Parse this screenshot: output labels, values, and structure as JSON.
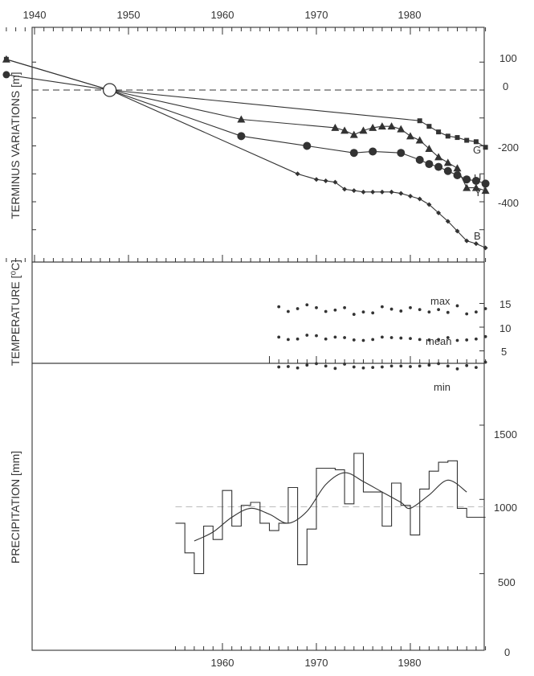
{
  "chart_data": [
    {
      "type": "line",
      "ylabel": "TERMINUS VARIATIONS [m]",
      "x_ticks": [
        "1940",
        "1950",
        "1960",
        "1970",
        "1980"
      ],
      "y_ticks": [
        "100",
        "0",
        "-200",
        "-400"
      ],
      "xlim": [
        1937,
        1989
      ],
      "ylim": [
        -600,
        200
      ],
      "reference_line_y": 0,
      "reference_point": {
        "x": 1948,
        "y": 0
      },
      "series": [
        {
          "name": "G",
          "marker": "square",
          "x": [
            1937,
            1948,
            1981,
            1982,
            1983,
            1984,
            1985,
            1986,
            1987,
            1988
          ],
          "y": [
            110,
            0,
            -110,
            -130,
            -150,
            -165,
            -170,
            -180,
            -185,
            -205
          ]
        },
        {
          "name": "U",
          "marker": "circle",
          "x": [
            1937,
            1948,
            1962,
            1969,
            1974,
            1976,
            1979,
            1981,
            1982,
            1983,
            1984,
            1985,
            1986,
            1987,
            1988
          ],
          "y": [
            55,
            0,
            -165,
            -200,
            -225,
            -220,
            -225,
            -250,
            -265,
            -275,
            -290,
            -305,
            -320,
            -325,
            -335
          ]
        },
        {
          "name": "Y",
          "marker": "triangle",
          "x": [
            1937,
            1948,
            1962,
            1972,
            1973,
            1974,
            1975,
            1976,
            1977,
            1978,
            1979,
            1980,
            1981,
            1982,
            1983,
            1984,
            1985,
            1986,
            1987,
            1988
          ],
          "y": [
            110,
            0,
            -105,
            -135,
            -145,
            -160,
            -145,
            -135,
            -130,
            -130,
            -140,
            -165,
            -180,
            -210,
            -240,
            -260,
            -280,
            -350,
            -350,
            -360
          ]
        },
        {
          "name": "B",
          "marker": "diamond",
          "x": [
            1948,
            1968,
            1970,
            1971,
            1972,
            1973,
            1974,
            1975,
            1976,
            1977,
            1978,
            1979,
            1980,
            1981,
            1982,
            1983,
            1984,
            1985,
            1986,
            1987,
            1988
          ],
          "y": [
            0,
            -300,
            -320,
            -325,
            -330,
            -355,
            -360,
            -365,
            -365,
            -365,
            -365,
            -370,
            -380,
            -390,
            -410,
            -440,
            -470,
            -505,
            -540,
            -550,
            -565
          ]
        }
      ]
    },
    {
      "type": "scatter",
      "ylabel": "TEMPERATURE [⁰C]",
      "y_ticks": [
        "15",
        "10",
        "5"
      ],
      "xlim": [
        1937,
        1989
      ],
      "ylim": [
        0,
        20
      ],
      "series": [
        {
          "name": "max",
          "x": [
            1966,
            1967,
            1968,
            1969,
            1970,
            1971,
            1972,
            1973,
            1974,
            1975,
            1976,
            1977,
            1978,
            1979,
            1980,
            1981,
            1982,
            1983,
            1984,
            1985,
            1986,
            1987,
            1988
          ],
          "y": [
            14.3,
            13.3,
            13.9,
            14.7,
            14.1,
            13.3,
            13.6,
            14.1,
            12.7,
            13.2,
            13.0,
            14.3,
            13.8,
            13.4,
            14.1,
            13.7,
            13.2,
            13.7,
            13.1,
            14.5,
            12.8,
            13.2,
            13.9
          ]
        },
        {
          "name": "mean",
          "x": [
            1966,
            1967,
            1968,
            1969,
            1970,
            1971,
            1972,
            1973,
            1974,
            1975,
            1976,
            1977,
            1978,
            1979,
            1980,
            1981,
            1982,
            1983,
            1984,
            1985,
            1986,
            1987,
            1988
          ],
          "y": [
            7.9,
            7.4,
            7.5,
            8.3,
            8.2,
            7.5,
            7.9,
            7.8,
            7.3,
            7.2,
            7.4,
            7.9,
            7.8,
            7.7,
            7.6,
            7.4,
            7.3,
            7.4,
            7.8,
            7.2,
            7.3,
            7.5,
            8.0
          ]
        },
        {
          "name": "min",
          "x": [
            1966,
            1967,
            1968,
            1969,
            1970,
            1971,
            1972,
            1973,
            1974,
            1975,
            1976,
            1977,
            1978,
            1979,
            1980,
            1981,
            1982,
            1983,
            1984,
            1985,
            1986,
            1987,
            1988
          ],
          "y": [
            1.6,
            1.7,
            1.4,
            2.0,
            2.3,
            1.8,
            1.3,
            2.2,
            1.6,
            1.4,
            1.5,
            1.6,
            1.8,
            1.8,
            1.7,
            1.8,
            2.0,
            2.3,
            1.8,
            1.2,
            1.9,
            1.5,
            2.6
          ]
        }
      ]
    },
    {
      "type": "line",
      "ylabel": "PRECIPITATION [mm]",
      "x_ticks": [
        "1960",
        "1970",
        "1980"
      ],
      "y_ticks": [
        "1500",
        "1000",
        "500",
        "0"
      ],
      "xlim": [
        1937,
        1989
      ],
      "ylim": [
        0,
        1650
      ],
      "reference_line_y": 950,
      "annual": {
        "x": [
          1955,
          1956,
          1957,
          1958,
          1959,
          1960,
          1961,
          1962,
          1963,
          1964,
          1965,
          1966,
          1967,
          1968,
          1969,
          1970,
          1971,
          1972,
          1973,
          1974,
          1975,
          1976,
          1977,
          1978,
          1979,
          1980,
          1981,
          1982,
          1983,
          1984,
          1985,
          1986,
          1987
        ],
        "y": [
          840,
          640,
          500,
          820,
          730,
          1060,
          820,
          960,
          980,
          840,
          790,
          840,
          1080,
          560,
          800,
          1210,
          1210,
          1200,
          970,
          1310,
          1050,
          1050,
          820,
          1110,
          960,
          760,
          1070,
          1190,
          1250,
          1260,
          940,
          880,
          880
        ]
      },
      "smoothed": {
        "x": [
          1957,
          1959,
          1961,
          1963,
          1965,
          1967,
          1969,
          1971,
          1973,
          1975,
          1977,
          1979,
          1980,
          1982,
          1984,
          1986
        ],
        "y": [
          720,
          780,
          880,
          940,
          900,
          840,
          920,
          1100,
          1180,
          1120,
          1050,
          980,
          940,
          1030,
          1130,
          1050
        ]
      }
    }
  ],
  "series_labels": [
    "G",
    "U",
    "Y",
    "B"
  ],
  "temperature_labels": [
    "max",
    "mean",
    "min"
  ],
  "colors": {
    "ink": "#333333",
    "dashed": "#333333",
    "reference": "#bbbbbb"
  }
}
